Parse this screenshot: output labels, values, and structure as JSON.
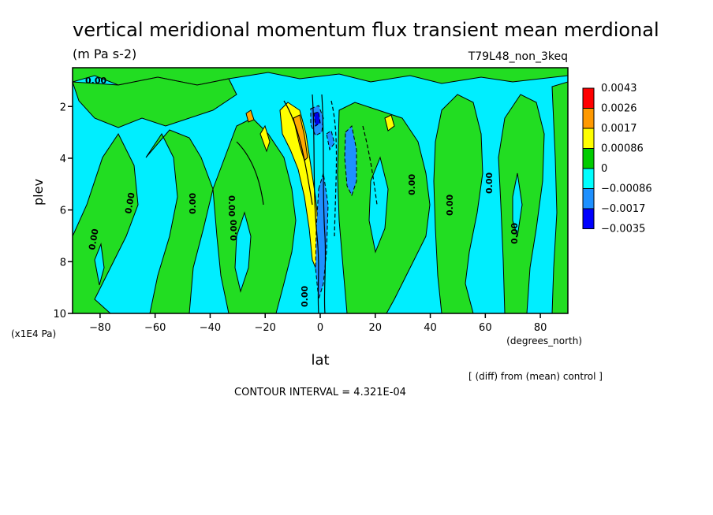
{
  "chart_data": {
    "type": "heatmap",
    "title": "vertical meridional momentum flux transient mean merdional",
    "units": "(m Pa s-2)",
    "run_label": "T79L48_non_3keq",
    "xlabel": "lat",
    "x_units": "(degrees_north)",
    "ylabel": "plev",
    "y_units": "(x1E4 Pa)",
    "xlim": [
      -90,
      90
    ],
    "ylim": [
      10,
      0.5
    ],
    "x_ticks": [
      -80,
      -60,
      -40,
      -20,
      0,
      20,
      40,
      60,
      80
    ],
    "y_ticks": [
      2,
      4,
      6,
      8,
      10
    ],
    "contour_interval_text": "CONTOUR INTERVAL = 4.321E-04",
    "diff_note": "[ (diff) from (mean) control ]",
    "contour_label": "0.00",
    "colorbar": [
      {
        "label": "0.0043",
        "color": "#ff0000"
      },
      {
        "label": "0.0026",
        "color": "#ff9900"
      },
      {
        "label": "0.0017",
        "color": "#ffff00"
      },
      {
        "label": "0.00086",
        "color": "#00cc00"
      },
      {
        "label": "0",
        "color": "#00ffff"
      },
      {
        "label": "−0.00086",
        "color": "#1e90ff"
      },
      {
        "label": "−0.0017",
        "color": "#0000ff"
      },
      {
        "label": "−0.0035",
        "color": ""
      }
    ],
    "colors": {
      "green": "#22dd22",
      "cyan": "#00eeff",
      "yellow": "#ffff00",
      "orange": "#ffaa00",
      "blue": "#1e90ff",
      "dark_blue": "#0000ee"
    },
    "features": [
      {
        "name": "equatorial positive anomaly",
        "lat_range": [
          -8,
          2
        ],
        "plev_range": [
          2,
          9
        ],
        "value": 0.0017
      },
      {
        "name": "equatorial negative anomaly",
        "lat_range": [
          0,
          4
        ],
        "plev_range": [
          3,
          10
        ],
        "value": -0.0017
      },
      {
        "name": "upper-level negative core",
        "lat_range": [
          -3,
          -1
        ],
        "plev_range": [
          1.8,
          2.6
        ],
        "value": -0.0017
      },
      {
        "name": "NH subtropical negative band",
        "lat_range": [
          10,
          14
        ],
        "plev_range": [
          2.5,
          5
        ],
        "value": -0.00086
      }
    ]
  }
}
